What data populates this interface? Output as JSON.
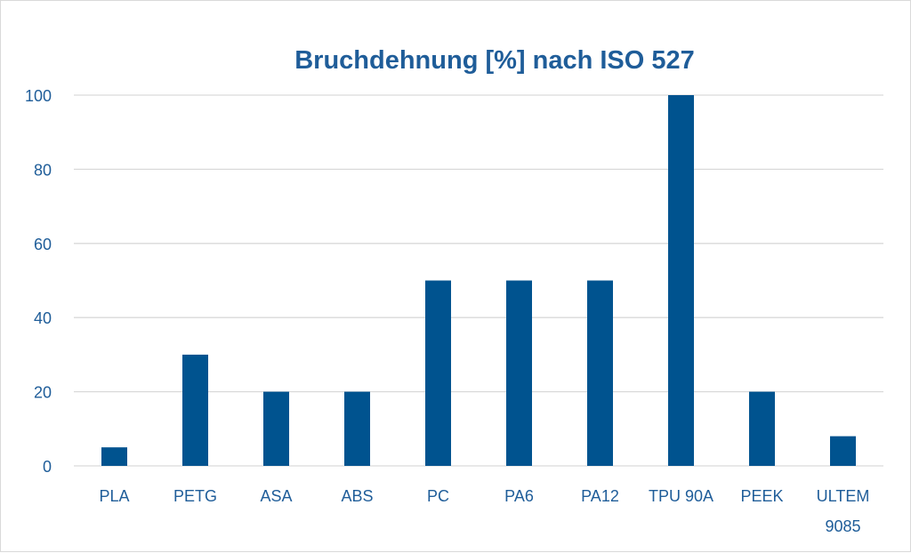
{
  "chart_data": {
    "type": "bar",
    "title": "Bruchdehnung [%] nach ISO 527",
    "xlabel": "",
    "ylabel": "",
    "categories": [
      "PLA",
      "PETG",
      "ASA",
      "ABS",
      "PC",
      "PA6",
      "PA12",
      "TPU 90A",
      "PEEK",
      "ULTEM 9085"
    ],
    "values": [
      5,
      30,
      20,
      20,
      50,
      50,
      50,
      100,
      20,
      8
    ],
    "ylim": [
      0,
      100
    ],
    "yticks": [
      "0",
      "20",
      "40",
      "60",
      "80",
      "100"
    ],
    "grid": true,
    "legend": "none",
    "colors": {
      "bar": "#00538f",
      "text": "#1f5d99",
      "grid": "#d9d9d9"
    }
  }
}
